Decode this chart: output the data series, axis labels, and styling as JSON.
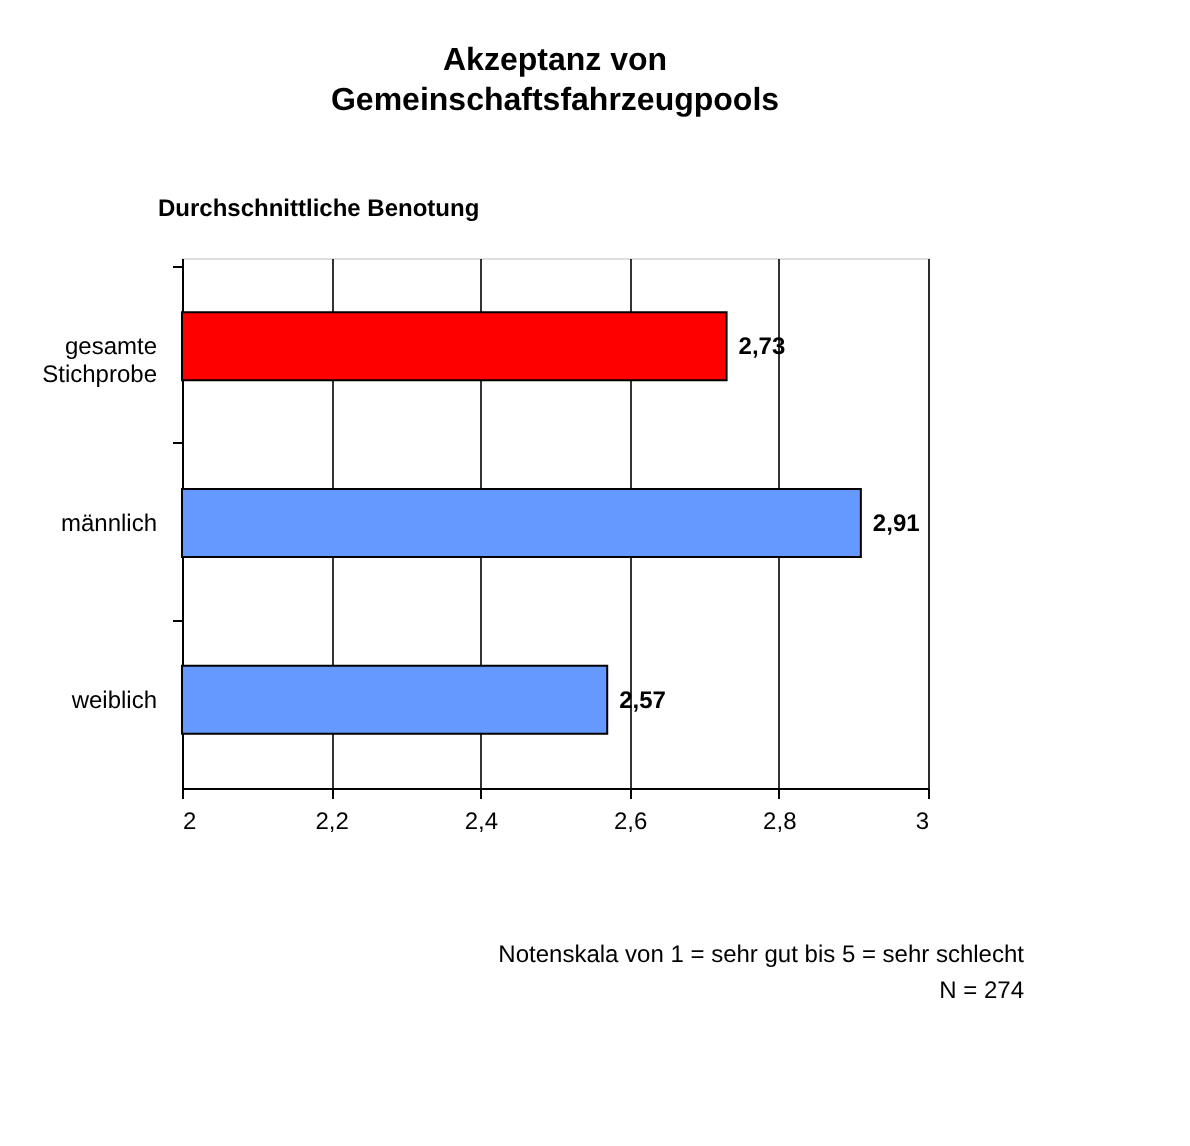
{
  "chart_data": {
    "type": "bar",
    "orientation": "horizontal",
    "title": "Akzeptanz von Gemeinschaftsfahrzeugpools",
    "subtitle": "Durchschnittliche Benotung",
    "categories": [
      "gesamte Stichprobe",
      "männlich",
      "weiblich"
    ],
    "values": [
      2.73,
      2.91,
      2.57
    ],
    "colors": [
      "#ff0000",
      "#6699ff",
      "#6699ff"
    ],
    "value_labels": [
      "2,73",
      "2,91",
      "2,57"
    ],
    "xlim": [
      2,
      3
    ],
    "xticks": [
      2,
      {
        "value": 2.2,
        "label": "2,2"
      },
      {
        "value": 2.4,
        "label": "2,4"
      },
      {
        "value": 2.6,
        "label": "2,6"
      },
      {
        "value": 2.8,
        "label": "2,8"
      },
      3
    ],
    "grid": "x",
    "annotations": [
      "Notenskala von 1 = sehr gut bis 5 = sehr schlecht",
      "N = 274"
    ]
  }
}
